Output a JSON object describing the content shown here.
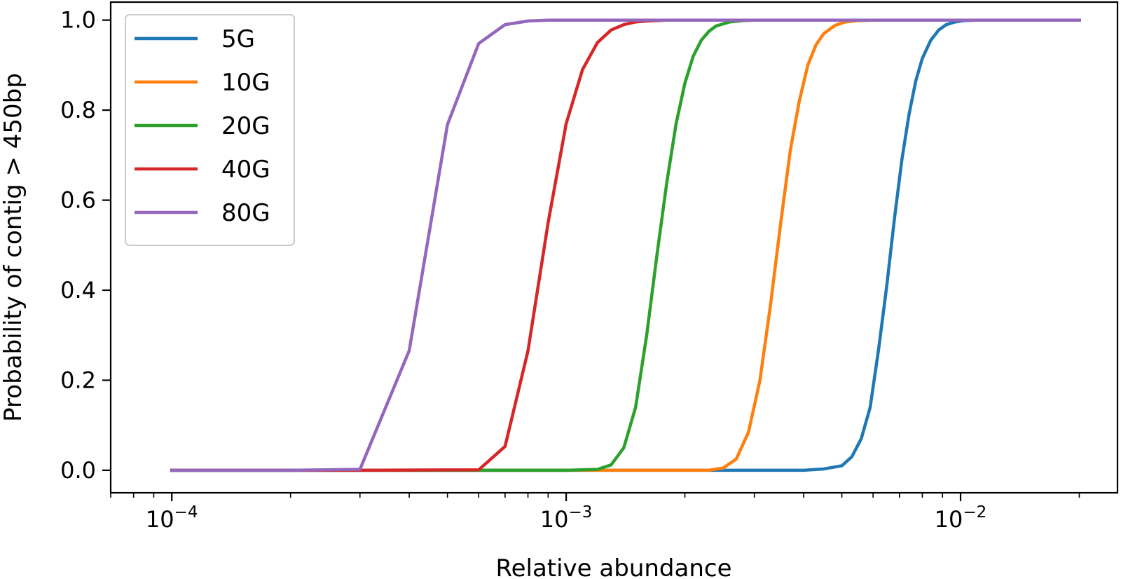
{
  "chart_data": {
    "type": "line",
    "title": "",
    "xlabel": "Relative abundance",
    "ylabel": "Probability of contig > 450bp",
    "xscale": "log",
    "xlim": [
      7e-05,
      0.025
    ],
    "ylim": [
      -0.05,
      1.04
    ],
    "x_ticks": [
      {
        "value": 0.0001,
        "base": "10",
        "exp": "−4"
      },
      {
        "value": 0.001,
        "base": "10",
        "exp": "−3"
      },
      {
        "value": 0.01,
        "base": "10",
        "exp": "−2"
      }
    ],
    "y_ticks": [
      {
        "value": 0.0,
        "label": "0.0"
      },
      {
        "value": 0.2,
        "label": "0.2"
      },
      {
        "value": 0.4,
        "label": "0.4"
      },
      {
        "value": 0.6,
        "label": "0.6"
      },
      {
        "value": 0.8,
        "label": "0.8"
      },
      {
        "value": 1.0,
        "label": "1.0"
      }
    ],
    "grid": false,
    "legend_position": "top-left",
    "series": [
      {
        "name": "5G",
        "color": "#1f77b4",
        "x": [
          0.0001,
          0.001,
          0.0025,
          0.004,
          0.0045,
          0.005,
          0.0053,
          0.0056,
          0.0059,
          0.0062,
          0.0065,
          0.0068,
          0.0071,
          0.0074,
          0.0077,
          0.008,
          0.0084,
          0.0088,
          0.0092,
          0.0097,
          0.0102,
          0.011,
          0.012,
          0.014,
          0.02
        ],
        "y": [
          0.0,
          0.0,
          0.0,
          0.0,
          0.003,
          0.01,
          0.03,
          0.07,
          0.14,
          0.27,
          0.41,
          0.56,
          0.69,
          0.79,
          0.865,
          0.915,
          0.955,
          0.978,
          0.99,
          0.996,
          0.999,
          1.0,
          1.0,
          1.0,
          1.0
        ]
      },
      {
        "name": "10G",
        "color": "#ff7f0e",
        "x": [
          0.0001,
          0.001,
          0.0023,
          0.0025,
          0.0027,
          0.0029,
          0.0031,
          0.0033,
          0.0035,
          0.0037,
          0.0039,
          0.0041,
          0.0043,
          0.0045,
          0.0048,
          0.0051,
          0.0055,
          0.006,
          0.007,
          0.02
        ],
        "y": [
          0.0,
          0.0,
          0.0,
          0.005,
          0.025,
          0.085,
          0.2,
          0.37,
          0.55,
          0.71,
          0.82,
          0.9,
          0.945,
          0.97,
          0.988,
          0.996,
          0.999,
          1.0,
          1.0,
          1.0
        ]
      },
      {
        "name": "20G",
        "color": "#2ca02c",
        "x": [
          0.0001,
          0.001,
          0.0012,
          0.0013,
          0.0014,
          0.0015,
          0.0016,
          0.0017,
          0.0018,
          0.0019,
          0.002,
          0.0021,
          0.0022,
          0.0023,
          0.0024,
          0.0026,
          0.0028,
          0.003,
          0.0033,
          0.004,
          0.02
        ],
        "y": [
          0.0,
          0.0,
          0.002,
          0.012,
          0.05,
          0.14,
          0.3,
          0.48,
          0.64,
          0.77,
          0.86,
          0.92,
          0.955,
          0.975,
          0.987,
          0.996,
          0.999,
          1.0,
          1.0,
          1.0,
          1.0
        ]
      },
      {
        "name": "40G",
        "color": "#d62728",
        "x": [
          0.0001,
          0.0003,
          0.0006,
          0.0007,
          0.0008,
          0.0009,
          0.001,
          0.0011,
          0.0012,
          0.0013,
          0.0014,
          0.0015,
          0.0016,
          0.0018,
          0.002,
          0.02
        ],
        "y": [
          0.0,
          0.0,
          0.001,
          0.053,
          0.265,
          0.55,
          0.77,
          0.89,
          0.95,
          0.978,
          0.99,
          0.996,
          0.998,
          1.0,
          1.0,
          1.0
        ]
      },
      {
        "name": "80G",
        "color": "#9467bd",
        "x": [
          0.0001,
          0.0002,
          0.0003,
          0.0004,
          0.0005,
          0.0006,
          0.0007,
          0.0008,
          0.0009,
          0.001,
          0.002,
          0.02
        ],
        "y": [
          0.0,
          0.0,
          0.002,
          0.266,
          0.768,
          0.948,
          0.99,
          0.998,
          1.0,
          1.0,
          1.0,
          1.0
        ]
      }
    ]
  }
}
